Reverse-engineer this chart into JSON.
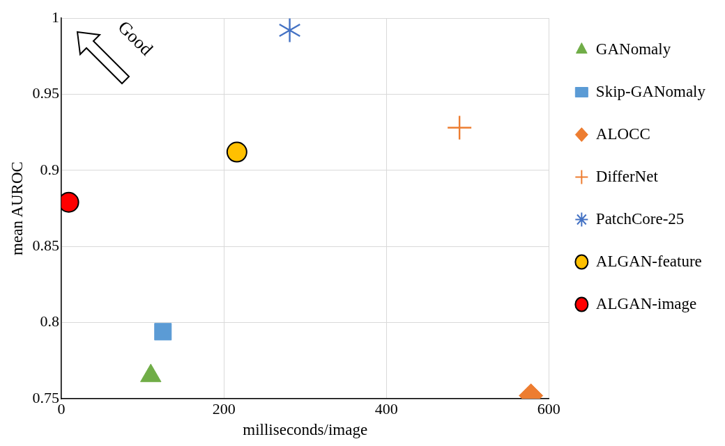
{
  "chart_data": {
    "type": "scatter",
    "xlabel": "milliseconds/image",
    "ylabel": "mean AUROC",
    "xlim": [
      0,
      600
    ],
    "xticks": [
      0,
      200,
      400,
      600
    ],
    "ylim": [
      0.75,
      1
    ],
    "yticks": [
      0.75,
      0.8,
      0.85,
      0.9,
      0.95,
      1
    ],
    "grid": true,
    "legend": "right",
    "annotations": [
      "Good"
    ],
    "series": [
      {
        "name": "GANomaly",
        "color": "#70ad47",
        "marker": "triangle",
        "x": [
          110
        ],
        "values": [
          0.765
        ]
      },
      {
        "name": "Skip-GANomaly",
        "color": "#5b9bd5",
        "marker": "square",
        "x": [
          125
        ],
        "values": [
          0.794
        ]
      },
      {
        "name": "ALOCC",
        "color": "#ed7d31",
        "marker": "diamond",
        "x": [
          578
        ],
        "values": [
          0.752
        ]
      },
      {
        "name": "DifferNet",
        "color": "#ed7d31",
        "marker": "cross",
        "x": [
          490
        ],
        "values": [
          0.928
        ]
      },
      {
        "name": "PatchCore-25",
        "color": "#4472c4",
        "marker": "star",
        "x": [
          281
        ],
        "values": [
          0.992
        ]
      },
      {
        "name": "ALGAN-feature",
        "color": "#ffc000",
        "marker": "circle",
        "x": [
          216
        ],
        "values": [
          0.912
        ]
      },
      {
        "name": "ALGAN-image",
        "color": "#ff0000",
        "marker": "circle",
        "x": [
          9
        ],
        "values": [
          0.879
        ]
      }
    ]
  }
}
